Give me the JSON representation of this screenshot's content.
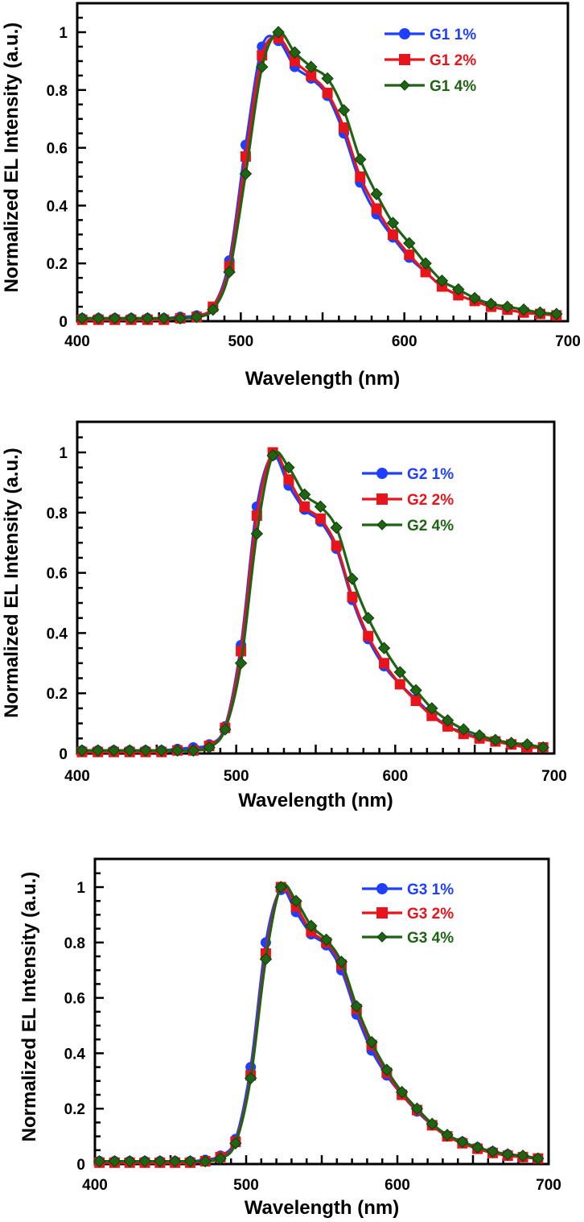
{
  "chart_data": [
    {
      "type": "line",
      "xlabel": "Wavelength (nm)",
      "ylabel": "Normalized EL Intensity (a.u.)",
      "xlim": [
        400,
        700
      ],
      "ylim": [
        0,
        1.1
      ],
      "xticks": [
        400,
        500,
        600,
        700
      ],
      "xtick_labels": [
        "400",
        "500",
        "600",
        "700"
      ],
      "yticks": [
        0,
        0.2,
        0.4,
        0.6,
        0.8,
        1
      ],
      "ytick_labels": [
        "0",
        "0.2",
        "0.4",
        "0.6",
        "0.8",
        "1"
      ],
      "grid": false,
      "legend_position": "top-right",
      "x": [
        403,
        413,
        423,
        433,
        443,
        453,
        463,
        473,
        483,
        493,
        503,
        513,
        523,
        533,
        543,
        553,
        563,
        573,
        583,
        593,
        603,
        613,
        623,
        633,
        643,
        653,
        663,
        673,
        683,
        693
      ],
      "series": [
        {
          "name": "G1 1%",
          "color": "#1f3fff",
          "marker": "circle",
          "values": [
            0.01,
            0.01,
            0.01,
            0.01,
            0.01,
            0.01,
            0.015,
            0.02,
            0.05,
            0.21,
            0.61,
            0.95,
            0.97,
            0.88,
            0.84,
            0.78,
            0.65,
            0.48,
            0.37,
            0.29,
            0.22,
            0.17,
            0.12,
            0.09,
            0.07,
            0.05,
            0.04,
            0.03,
            0.025,
            0.02
          ]
        },
        {
          "name": "G1 2%",
          "color": "#e8141c",
          "marker": "square",
          "values": [
            0.005,
            0.005,
            0.005,
            0.005,
            0.005,
            0.005,
            0.01,
            0.015,
            0.05,
            0.19,
            0.57,
            0.92,
            0.98,
            0.9,
            0.85,
            0.79,
            0.67,
            0.5,
            0.39,
            0.3,
            0.23,
            0.17,
            0.12,
            0.09,
            0.07,
            0.05,
            0.04,
            0.03,
            0.025,
            0.02
          ]
        },
        {
          "name": "G1 4%",
          "color": "#1e6414",
          "marker": "diamond",
          "values": [
            0.01,
            0.01,
            0.01,
            0.01,
            0.01,
            0.01,
            0.01,
            0.015,
            0.04,
            0.17,
            0.51,
            0.88,
            1.0,
            0.93,
            0.88,
            0.84,
            0.73,
            0.56,
            0.44,
            0.34,
            0.27,
            0.2,
            0.14,
            0.11,
            0.08,
            0.06,
            0.05,
            0.04,
            0.03,
            0.025
          ]
        }
      ]
    },
    {
      "type": "line",
      "xlabel": "Wavelength (nm)",
      "ylabel": "Normalized EL Intensity (a.u.)",
      "xlim": [
        400,
        700
      ],
      "ylim": [
        0,
        1.1
      ],
      "xticks": [
        400,
        500,
        600,
        700
      ],
      "xtick_labels": [
        "400",
        "500",
        "600",
        "700"
      ],
      "yticks": [
        0,
        0.2,
        0.4,
        0.6,
        0.8,
        1
      ],
      "ytick_labels": [
        "0",
        "0.2",
        "0.4",
        "0.6",
        "0.8",
        "1"
      ],
      "grid": false,
      "legend_position": "top-right",
      "x": [
        403,
        413,
        423,
        433,
        443,
        453,
        463,
        473,
        483,
        493,
        503,
        513,
        523,
        533,
        543,
        553,
        563,
        573,
        583,
        593,
        603,
        613,
        623,
        633,
        643,
        653,
        663,
        673,
        683,
        693
      ],
      "series": [
        {
          "name": "G2 1%",
          "color": "#1f3fff",
          "marker": "circle",
          "values": [
            0.01,
            0.01,
            0.01,
            0.01,
            0.01,
            0.01,
            0.015,
            0.02,
            0.03,
            0.09,
            0.36,
            0.82,
            0.99,
            0.89,
            0.81,
            0.77,
            0.68,
            0.51,
            0.38,
            0.29,
            0.23,
            0.18,
            0.13,
            0.09,
            0.07,
            0.05,
            0.04,
            0.03,
            0.025,
            0.02
          ]
        },
        {
          "name": "G2 2%",
          "color": "#e8141c",
          "marker": "square",
          "values": [
            0.005,
            0.005,
            0.005,
            0.005,
            0.005,
            0.005,
            0.01,
            0.01,
            0.025,
            0.085,
            0.34,
            0.79,
            1.0,
            0.91,
            0.82,
            0.78,
            0.69,
            0.52,
            0.39,
            0.3,
            0.23,
            0.175,
            0.125,
            0.09,
            0.065,
            0.05,
            0.04,
            0.03,
            0.02,
            0.02
          ]
        },
        {
          "name": "G2 4%",
          "color": "#1e6414",
          "marker": "diamond",
          "values": [
            0.01,
            0.01,
            0.01,
            0.01,
            0.01,
            0.01,
            0.01,
            0.01,
            0.02,
            0.08,
            0.3,
            0.73,
            0.99,
            0.95,
            0.86,
            0.82,
            0.75,
            0.58,
            0.45,
            0.35,
            0.27,
            0.21,
            0.15,
            0.11,
            0.08,
            0.06,
            0.045,
            0.035,
            0.03,
            0.02
          ]
        }
      ]
    },
    {
      "type": "line",
      "xlabel": "Wavelength (nm)",
      "ylabel": "Normalized EL Intensity (a.u.)",
      "xlim": [
        400,
        700
      ],
      "ylim": [
        0,
        1.1
      ],
      "xticks": [
        400,
        500,
        600,
        700
      ],
      "xtick_labels": [
        "400",
        "500",
        "600",
        "700"
      ],
      "yticks": [
        0,
        0.2,
        0.4,
        0.6,
        0.8,
        1
      ],
      "ytick_labels": [
        "0",
        "0.2",
        "0.4",
        "0.6",
        "0.8",
        "1"
      ],
      "grid": false,
      "legend_position": "top-right",
      "x": [
        403,
        413,
        423,
        433,
        443,
        453,
        463,
        473,
        483,
        493,
        503,
        513,
        523,
        533,
        543,
        553,
        563,
        573,
        583,
        593,
        603,
        613,
        623,
        633,
        643,
        653,
        663,
        673,
        683,
        693
      ],
      "series": [
        {
          "name": "G3 1%",
          "color": "#1f3fff",
          "marker": "circle",
          "values": [
            0.01,
            0.01,
            0.01,
            0.01,
            0.01,
            0.01,
            0.01,
            0.015,
            0.03,
            0.09,
            0.35,
            0.8,
            0.99,
            0.91,
            0.83,
            0.79,
            0.7,
            0.54,
            0.41,
            0.32,
            0.25,
            0.19,
            0.14,
            0.1,
            0.08,
            0.06,
            0.045,
            0.035,
            0.025,
            0.02
          ]
        },
        {
          "name": "G3 2%",
          "color": "#e8141c",
          "marker": "square",
          "values": [
            0.005,
            0.005,
            0.005,
            0.005,
            0.005,
            0.005,
            0.005,
            0.01,
            0.025,
            0.08,
            0.32,
            0.76,
            1.0,
            0.93,
            0.84,
            0.8,
            0.72,
            0.56,
            0.43,
            0.33,
            0.25,
            0.195,
            0.14,
            0.1,
            0.075,
            0.055,
            0.04,
            0.03,
            0.025,
            0.02
          ]
        },
        {
          "name": "G3 4%",
          "color": "#1e6414",
          "marker": "diamond",
          "values": [
            0.01,
            0.01,
            0.01,
            0.01,
            0.01,
            0.01,
            0.01,
            0.01,
            0.02,
            0.075,
            0.31,
            0.74,
            1.0,
            0.95,
            0.86,
            0.81,
            0.73,
            0.57,
            0.44,
            0.34,
            0.26,
            0.2,
            0.145,
            0.105,
            0.08,
            0.06,
            0.045,
            0.035,
            0.03,
            0.02
          ]
        }
      ]
    }
  ]
}
